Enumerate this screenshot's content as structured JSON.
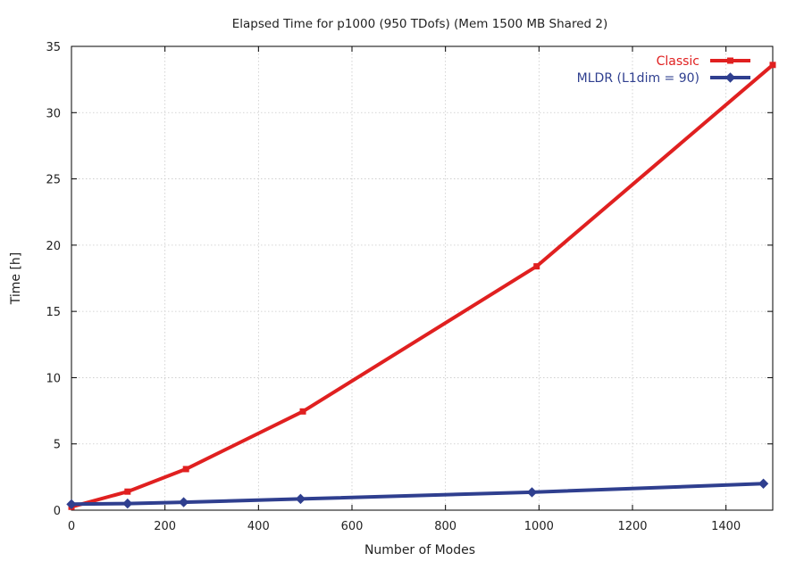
{
  "chart_data": {
    "type": "line",
    "title": "Elapsed Time for p1000 (950 TDofs) (Mem 1500 MB Shared 2)",
    "xlabel": "Number of Modes",
    "ylabel": "Time [h]",
    "xlim": [
      0,
      1500
    ],
    "ylim": [
      0,
      35
    ],
    "xticks": [
      0,
      200,
      400,
      600,
      800,
      1000,
      1200,
      1400
    ],
    "yticks": [
      0,
      5,
      10,
      15,
      20,
      25,
      30,
      35
    ],
    "grid": true,
    "legend_position": "top-right",
    "series": [
      {
        "name": "Classic",
        "color": "#e02020",
        "marker": "square",
        "x": [
          0,
          120,
          245,
          495,
          995,
          1500
        ],
        "y": [
          0.25,
          1.4,
          3.1,
          7.45,
          18.4,
          33.6
        ]
      },
      {
        "name": "MLDR (L1dim = 90)",
        "color": "#2f3f8f",
        "marker": "diamond",
        "x": [
          0,
          120,
          240,
          490,
          985,
          1480
        ],
        "y": [
          0.45,
          0.5,
          0.6,
          0.85,
          1.35,
          2.0
        ]
      }
    ]
  }
}
